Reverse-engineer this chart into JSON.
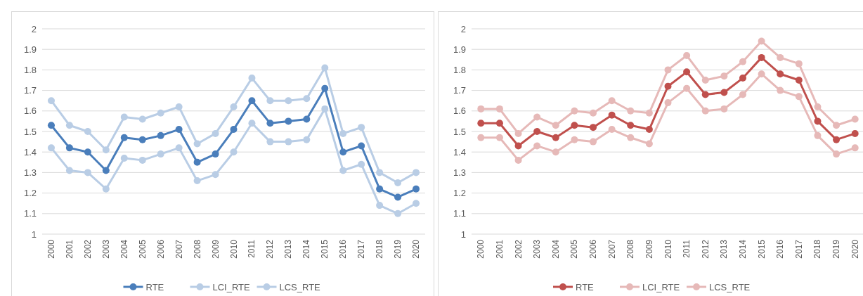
{
  "chart_data": [
    {
      "type": "line",
      "categories": [
        "2000",
        "2001",
        "2002",
        "2003",
        "2004",
        "2005",
        "2006",
        "2007",
        "2008",
        "2009",
        "2010",
        "2011",
        "2012",
        "2013",
        "2014",
        "2015",
        "2016",
        "2017",
        "2018",
        "2019",
        "2020"
      ],
      "ylim": [
        1,
        2
      ],
      "yticks": [
        1,
        1.1,
        1.2,
        1.3,
        1.4,
        1.5,
        1.6,
        1.7,
        1.8,
        1.9,
        2
      ],
      "grid": "y",
      "legend": "bottom",
      "marker": "circle",
      "series": [
        {
          "name": "RTE",
          "color": "#4a7ebb",
          "values": [
            1.53,
            1.42,
            1.4,
            1.31,
            1.47,
            1.46,
            1.48,
            1.51,
            1.35,
            1.39,
            1.51,
            1.65,
            1.54,
            1.55,
            1.56,
            1.71,
            1.4,
            1.43,
            1.22,
            1.18,
            1.22
          ]
        },
        {
          "name": "LCI_RTE",
          "color": "#b9cde5",
          "values": [
            1.42,
            1.31,
            1.3,
            1.22,
            1.37,
            1.36,
            1.39,
            1.42,
            1.26,
            1.29,
            1.4,
            1.54,
            1.45,
            1.45,
            1.46,
            1.61,
            1.31,
            1.34,
            1.14,
            1.1,
            1.15
          ]
        },
        {
          "name": "LCS_RTE",
          "color": "#b9cde5",
          "values": [
            1.65,
            1.53,
            1.5,
            1.41,
            1.57,
            1.56,
            1.59,
            1.62,
            1.44,
            1.49,
            1.62,
            1.76,
            1.65,
            1.65,
            1.66,
            1.81,
            1.49,
            1.52,
            1.3,
            1.25,
            1.3
          ]
        }
      ]
    },
    {
      "type": "line",
      "categories": [
        "2000",
        "2001",
        "2002",
        "2003",
        "2004",
        "2005",
        "2006",
        "2007",
        "2008",
        "2009",
        "2010",
        "2011",
        "2012",
        "2013",
        "2014",
        "2015",
        "2016",
        "2017",
        "2018",
        "2019",
        "2020"
      ],
      "ylim": [
        1,
        2
      ],
      "yticks": [
        1,
        1.1,
        1.2,
        1.3,
        1.4,
        1.5,
        1.6,
        1.7,
        1.8,
        1.9,
        2
      ],
      "grid": "y",
      "legend": "bottom",
      "marker": "circle",
      "series": [
        {
          "name": "RTE",
          "color": "#c0504d",
          "values": [
            1.54,
            1.54,
            1.43,
            1.5,
            1.47,
            1.53,
            1.52,
            1.58,
            1.53,
            1.51,
            1.72,
            1.79,
            1.68,
            1.69,
            1.76,
            1.86,
            1.78,
            1.75,
            1.55,
            1.46,
            1.49
          ]
        },
        {
          "name": "LCI_RTE",
          "color": "#e6b9b8",
          "values": [
            1.47,
            1.47,
            1.36,
            1.43,
            1.4,
            1.46,
            1.45,
            1.51,
            1.47,
            1.44,
            1.64,
            1.71,
            1.6,
            1.61,
            1.68,
            1.78,
            1.7,
            1.67,
            1.48,
            1.39,
            1.42
          ]
        },
        {
          "name": "LCS_RTE",
          "color": "#e6b9b8",
          "values": [
            1.61,
            1.61,
            1.49,
            1.57,
            1.53,
            1.6,
            1.59,
            1.65,
            1.6,
            1.59,
            1.8,
            1.87,
            1.75,
            1.77,
            1.84,
            1.94,
            1.86,
            1.83,
            1.62,
            1.53,
            1.56
          ]
        }
      ]
    }
  ]
}
